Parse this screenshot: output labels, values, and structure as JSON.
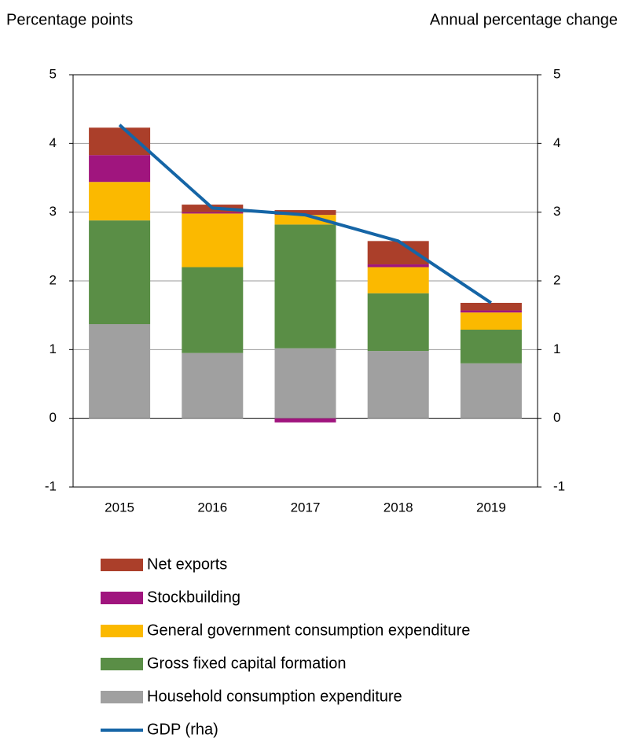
{
  "chart_data": {
    "type": "bar",
    "y_label": "Percentage points",
    "y2_label": "Annual percentage change",
    "categories": [
      "2015",
      "2016",
      "2017",
      "2018",
      "2019"
    ],
    "series": [
      {
        "name": "Household consumption expenditure",
        "color": "#a0a0a0",
        "values": [
          1.37,
          0.95,
          1.02,
          0.98,
          0.8
        ]
      },
      {
        "name": "Gross fixed capital formation",
        "color": "#5a8e46",
        "values": [
          1.51,
          1.25,
          1.8,
          0.84,
          0.49
        ]
      },
      {
        "name": "General government consumption expenditure",
        "color": "#fbb900",
        "values": [
          0.56,
          0.78,
          0.14,
          0.38,
          0.25
        ]
      },
      {
        "name": "Stockbuilding",
        "color": "#a0157e",
        "values": [
          0.39,
          0.02,
          -0.06,
          0.04,
          0.03
        ]
      },
      {
        "name": "Net exports",
        "color": "#ab3f2a",
        "values": [
          0.4,
          0.11,
          0.07,
          0.34,
          0.11
        ]
      },
      {
        "name": "GDP (rha)",
        "type": "line",
        "axis": "y2",
        "color": "#1565a6",
        "values": [
          4.27,
          3.06,
          2.96,
          2.58,
          1.68
        ]
      }
    ],
    "stacked": true,
    "ylim": [
      -1,
      5
    ],
    "yticks": [
      -1,
      0,
      1,
      2,
      3,
      4,
      5
    ],
    "y2lim": [
      -1,
      5
    ],
    "y2ticks": [
      -1,
      0,
      1,
      2,
      3,
      4,
      5
    ],
    "grid": true
  }
}
